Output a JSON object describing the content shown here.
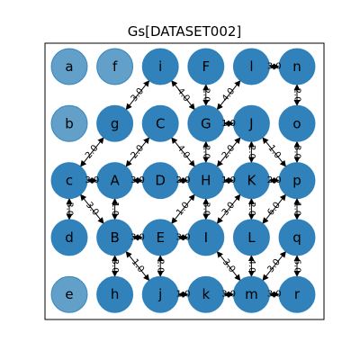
{
  "title": "Gs[DATASET002]",
  "colors": {
    "node_fill": "#1f77b4",
    "isolated_fill": "#1f77b4",
    "edge": "#000000",
    "frame": "#000000"
  },
  "nodes": [
    {
      "id": "a",
      "col": 0,
      "row": 0,
      "isolated": true
    },
    {
      "id": "f",
      "col": 1,
      "row": 0,
      "isolated": true
    },
    {
      "id": "i",
      "col": 2,
      "row": 0,
      "isolated": false
    },
    {
      "id": "F",
      "col": 3,
      "row": 0,
      "isolated": false
    },
    {
      "id": "l",
      "col": 4,
      "row": 0,
      "isolated": false
    },
    {
      "id": "n",
      "col": 5,
      "row": 0,
      "isolated": false
    },
    {
      "id": "b",
      "col": 0,
      "row": 1,
      "isolated": true
    },
    {
      "id": "g",
      "col": 1,
      "row": 1,
      "isolated": false
    },
    {
      "id": "C",
      "col": 2,
      "row": 1,
      "isolated": false
    },
    {
      "id": "G",
      "col": 3,
      "row": 1,
      "isolated": false
    },
    {
      "id": "J",
      "col": 4,
      "row": 1,
      "isolated": false
    },
    {
      "id": "o",
      "col": 5,
      "row": 1,
      "isolated": false
    },
    {
      "id": "c",
      "col": 0,
      "row": 2,
      "isolated": false
    },
    {
      "id": "A",
      "col": 1,
      "row": 2,
      "isolated": false
    },
    {
      "id": "D",
      "col": 2,
      "row": 2,
      "isolated": false
    },
    {
      "id": "H",
      "col": 3,
      "row": 2,
      "isolated": false
    },
    {
      "id": "K",
      "col": 4,
      "row": 2,
      "isolated": false
    },
    {
      "id": "p",
      "col": 5,
      "row": 2,
      "isolated": false
    },
    {
      "id": "d",
      "col": 0,
      "row": 3,
      "isolated": false
    },
    {
      "id": "B",
      "col": 1,
      "row": 3,
      "isolated": false
    },
    {
      "id": "E",
      "col": 2,
      "row": 3,
      "isolated": false
    },
    {
      "id": "I",
      "col": 3,
      "row": 3,
      "isolated": false
    },
    {
      "id": "L",
      "col": 4,
      "row": 3,
      "isolated": false
    },
    {
      "id": "q",
      "col": 5,
      "row": 3,
      "isolated": false
    },
    {
      "id": "e",
      "col": 0,
      "row": 4,
      "isolated": true
    },
    {
      "id": "h",
      "col": 1,
      "row": 4,
      "isolated": false
    },
    {
      "id": "j",
      "col": 2,
      "row": 4,
      "isolated": false
    },
    {
      "id": "k",
      "col": 3,
      "row": 4,
      "isolated": false
    },
    {
      "id": "m",
      "col": 4,
      "row": 4,
      "isolated": false
    },
    {
      "id": "r",
      "col": 5,
      "row": 4,
      "isolated": false
    }
  ],
  "edges": [
    {
      "from": "g",
      "to": "i",
      "label": "3.0"
    },
    {
      "from": "i",
      "to": "G",
      "label": "4.0"
    },
    {
      "from": "F",
      "to": "G",
      "label": "2.0"
    },
    {
      "from": "G",
      "to": "l",
      "label": "4.0"
    },
    {
      "from": "l",
      "to": "n",
      "label": "3.0"
    },
    {
      "from": "n",
      "to": "o",
      "label": "2.0"
    },
    {
      "from": "g",
      "to": "c",
      "label": "2.0"
    },
    {
      "from": "C",
      "to": "A",
      "label": "2.0"
    },
    {
      "from": "C",
      "to": "H",
      "label": "4.0"
    },
    {
      "from": "G",
      "to": "J",
      "label": "1.0"
    },
    {
      "from": "G",
      "to": "H",
      "label": "2.0"
    },
    {
      "from": "J",
      "to": "H",
      "label": "2.0"
    },
    {
      "from": "J",
      "to": "K",
      "label": "2.0"
    },
    {
      "from": "J",
      "to": "p",
      "label": "1.0"
    },
    {
      "from": "o",
      "to": "p",
      "label": "3.0"
    },
    {
      "from": "c",
      "to": "A",
      "label": "3.0"
    },
    {
      "from": "A",
      "to": "D",
      "label": "3.0"
    },
    {
      "from": "D",
      "to": "H",
      "label": "2.0"
    },
    {
      "from": "H",
      "to": "K",
      "label": "1.0"
    },
    {
      "from": "K",
      "to": "p",
      "label": "2.0"
    },
    {
      "from": "c",
      "to": "d",
      "label": "3.0"
    },
    {
      "from": "c",
      "to": "B",
      "label": "3.0"
    },
    {
      "from": "A",
      "to": "B",
      "label": "1.0"
    },
    {
      "from": "H",
      "to": "E",
      "label": "1.0"
    },
    {
      "from": "H",
      "to": "I",
      "label": "3.0"
    },
    {
      "from": "K",
      "to": "I",
      "label": "3.0"
    },
    {
      "from": "K",
      "to": "L",
      "label": "2.0"
    },
    {
      "from": "p",
      "to": "L",
      "label": "6.0"
    },
    {
      "from": "p",
      "to": "q",
      "label": "1.0"
    },
    {
      "from": "B",
      "to": "E",
      "label": "3.0"
    },
    {
      "from": "E",
      "to": "I",
      "label": "3.0"
    },
    {
      "from": "B",
      "to": "h",
      "label": "3.0"
    },
    {
      "from": "B",
      "to": "j",
      "label": "1.0"
    },
    {
      "from": "E",
      "to": "j",
      "label": "2.0"
    },
    {
      "from": "I",
      "to": "m",
      "label": "3.0"
    },
    {
      "from": "L",
      "to": "m",
      "label": "4.0"
    },
    {
      "from": "q",
      "to": "m",
      "label": "3.0"
    },
    {
      "from": "q",
      "to": "r",
      "label": "6.0"
    },
    {
      "from": "j",
      "to": "k",
      "label": "1.0"
    },
    {
      "from": "k",
      "to": "m",
      "label": "3.0"
    },
    {
      "from": "m",
      "to": "r",
      "label": "3.0"
    }
  ]
}
